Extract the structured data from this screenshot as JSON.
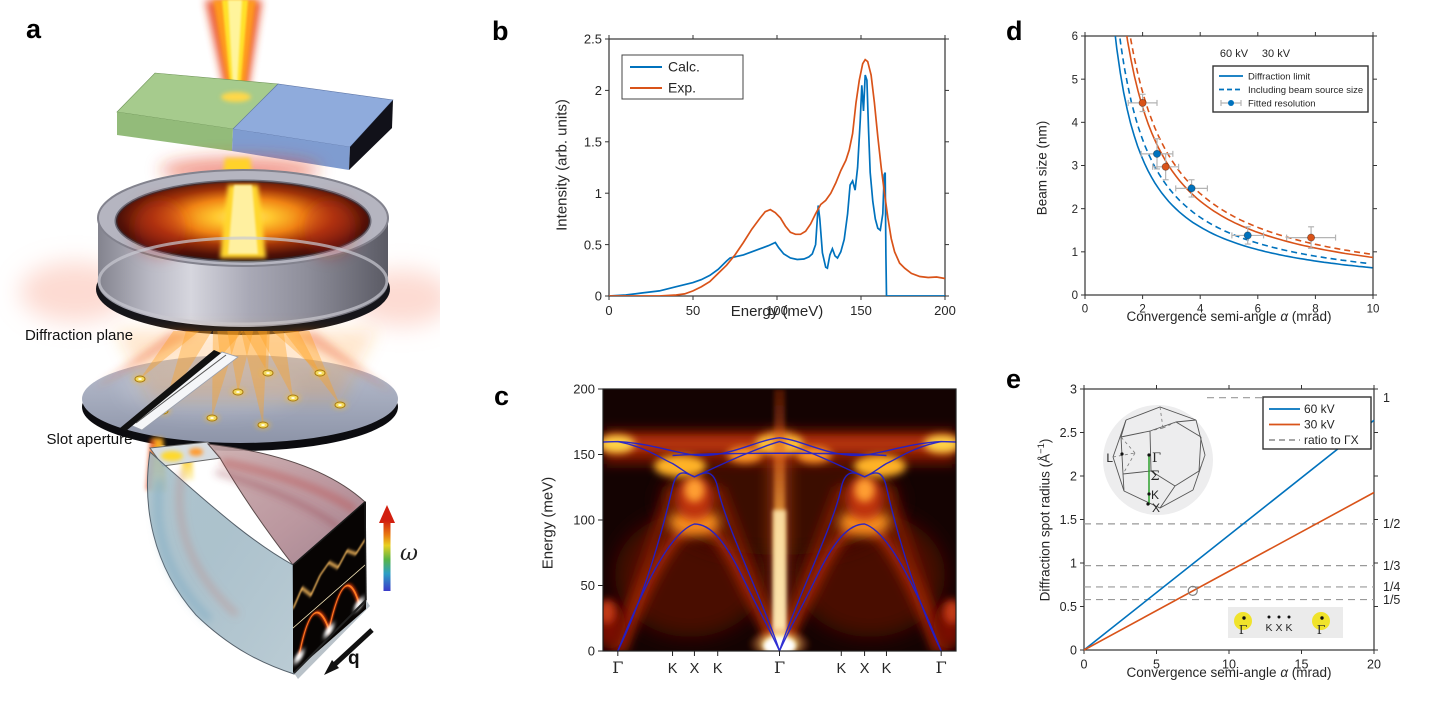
{
  "figure": {
    "background": "#ffffff",
    "panel_labels": {
      "a": "a",
      "b": "b",
      "c": "c",
      "d": "d",
      "e": "e"
    }
  },
  "panel_a": {
    "labels": {
      "diffraction_plane": "Diffraction plane",
      "slot_aperture": "Slot aperture",
      "omega": "ω",
      "q": "q"
    },
    "colors": {
      "sample_green": "#a6cb8d",
      "sample_blue": "#8fabdc",
      "beam_core": "#ffe12a",
      "beam_edge": "#e8431f",
      "lens_gray": "#a9a9b3",
      "disk_gray": "#a7aec2",
      "spot_yellow": "#f3d95c",
      "heatmap_black": "#070403"
    }
  },
  "chart_data": [
    {
      "id": "b",
      "type": "line",
      "xlabel": "Energy (meV)",
      "ylabel": "Intensity (arb. units)",
      "xlim": [
        0,
        200
      ],
      "ylim": [
        0,
        2.5
      ],
      "xticks": [
        0,
        50,
        100,
        150,
        200
      ],
      "xtick_labels": [
        "0",
        "50",
        "100",
        "150",
        "200"
      ],
      "yticks": [
        0,
        0.5,
        1,
        1.5,
        2,
        2.5
      ],
      "ytick_labels": [
        "0",
        "0.5",
        "1",
        "1.5",
        "2",
        "2.5"
      ],
      "legend": [
        "Calc.",
        "Exp."
      ],
      "legend_position": "top-left",
      "series": [
        {
          "name": "Calc.",
          "color": "#0072BD",
          "x": [
            0,
            10,
            20,
            30,
            40,
            50,
            55,
            60,
            65,
            70,
            72,
            76,
            80,
            85,
            90,
            95,
            99,
            101,
            104,
            108,
            112,
            116,
            119,
            121,
            123,
            124.5,
            125.5,
            127,
            129,
            130,
            131.5,
            133,
            134.5,
            136,
            138,
            140,
            142,
            143.5,
            145,
            146.5,
            148,
            149.5,
            150.5,
            151.5,
            152.5,
            153.5,
            154.5,
            155.5,
            157,
            158.5,
            160,
            161.5,
            163,
            163.8,
            164.4,
            164.8,
            165.2,
            170,
            200
          ],
          "y": [
            0,
            0.01,
            0.03,
            0.05,
            0.09,
            0.13,
            0.16,
            0.2,
            0.26,
            0.34,
            0.37,
            0.385,
            0.4,
            0.43,
            0.46,
            0.49,
            0.52,
            0.47,
            0.41,
            0.37,
            0.355,
            0.36,
            0.38,
            0.41,
            0.5,
            0.88,
            0.75,
            0.42,
            0.28,
            0.27,
            0.4,
            0.46,
            0.39,
            0.37,
            0.43,
            0.55,
            0.8,
            1.08,
            1.12,
            1.03,
            1.25,
            1.7,
            2.05,
            1.8,
            2.15,
            2.1,
            1.6,
            1.2,
            0.92,
            0.75,
            0.66,
            0.64,
            0.8,
            1.18,
            1.2,
            0.4,
            0,
            0,
            0
          ]
        },
        {
          "name": "Exp.",
          "color": "#D95319",
          "x": [
            0,
            30,
            40,
            45,
            50,
            55,
            60,
            65,
            70,
            75,
            80,
            85,
            90,
            93,
            96,
            99,
            102,
            105,
            108,
            111,
            114,
            117,
            120,
            123,
            126,
            129,
            132,
            135,
            138,
            141,
            143,
            145,
            147,
            149,
            151,
            152.5,
            154,
            156,
            158,
            160,
            162,
            164,
            166,
            168,
            170,
            173,
            176,
            180,
            185,
            190,
            195,
            200
          ],
          "y": [
            0,
            0,
            0.01,
            0.02,
            0.05,
            0.09,
            0.14,
            0.22,
            0.3,
            0.4,
            0.52,
            0.65,
            0.76,
            0.82,
            0.84,
            0.81,
            0.76,
            0.68,
            0.62,
            0.6,
            0.6,
            0.63,
            0.7,
            0.8,
            0.89,
            0.93,
            1.0,
            1.1,
            1.22,
            1.32,
            1.42,
            1.58,
            1.88,
            2.1,
            2.26,
            2.3,
            2.28,
            2.15,
            1.88,
            1.55,
            1.25,
            1.0,
            0.76,
            0.56,
            0.43,
            0.32,
            0.27,
            0.22,
            0.19,
            0.18,
            0.185,
            0.17
          ]
        }
      ]
    },
    {
      "id": "c",
      "type": "heatmap",
      "ylabel": "Energy (meV)",
      "ylim": [
        0,
        200
      ],
      "yticks": [
        0,
        50,
        100,
        150,
        200
      ],
      "ytick_labels": [
        "0",
        "50",
        "100",
        "150",
        "200"
      ],
      "xticklabels": [
        "Γ",
        "K",
        "X",
        "K",
        "Γ",
        "K",
        "X",
        "K",
        "Γ"
      ],
      "xtick_positions": [
        0.042,
        0.197,
        0.259,
        0.325,
        0.5,
        0.675,
        0.741,
        0.803,
        0.958
      ],
      "overlay_color": "#1f1fd0",
      "description": "Momentum-resolved vibrational spectrum along Γ-K-X-K-Γ-K-X-K-Γ with calculated phonon dispersion (blue curves): acoustic arches up to ~97 meV peaking at X, branch crossings ~125 meV at K, optical band 133-163 meV, intense elastic streak at central Γ, bright optical band near 160 meV"
    },
    {
      "id": "d",
      "type": "line",
      "xlabel": "Convergence semi-angle α (mrad)",
      "xlabel_parts": [
        "Convergence semi-angle ",
        "α",
        " (mrad)"
      ],
      "ylabel": "Beam size (nm)",
      "xlim": [
        0,
        10
      ],
      "ylim": [
        0,
        6
      ],
      "xticks": [
        0,
        2,
        4,
        6,
        8,
        10
      ],
      "xtick_labels": [
        "0",
        "2",
        "4",
        "6",
        "8",
        "10"
      ],
      "yticks": [
        0,
        1,
        2,
        3,
        4,
        5,
        6
      ],
      "ytick_labels": [
        "0",
        "1",
        "2",
        "3",
        "4",
        "5",
        "6"
      ],
      "voltage_labels": [
        {
          "text": "60 kV",
          "color": "#0072BD"
        },
        {
          "text": "30 kV",
          "color": "#D95319"
        }
      ],
      "legend": [
        "Diffraction limit",
        "Including beam source size",
        "Fitted resolution"
      ],
      "curves": [
        {
          "name": "60 kV diffraction limit",
          "style": "solid",
          "color": "#0072BD",
          "coefficient": 6.3
        },
        {
          "name": "60 kV including beam source size",
          "style": "dashed",
          "color": "#0072BD",
          "coefficient": 7.2
        },
        {
          "name": "30 kV diffraction limit",
          "style": "solid",
          "color": "#D95319",
          "coefficient": 8.7
        },
        {
          "name": "30 kV including beam source size",
          "style": "dashed",
          "color": "#D95319",
          "coefficient": 9.4
        }
      ],
      "points": [
        {
          "x": 2.0,
          "y": 4.45,
          "xerr": 0.5,
          "yerr": 0.2,
          "color": "#D95319"
        },
        {
          "x": 2.5,
          "y": 3.27,
          "xerr": 0.55,
          "yerr": 0.35,
          "color": "#0072BD"
        },
        {
          "x": 2.8,
          "y": 2.97,
          "xerr": 0.45,
          "yerr": 0.3,
          "color": "#D95319"
        },
        {
          "x": 3.7,
          "y": 2.47,
          "xerr": 0.55,
          "yerr": 0.2,
          "color": "#0072BD"
        },
        {
          "x": 5.65,
          "y": 1.38,
          "xerr": 0.55,
          "yerr": 0.2,
          "color": "#0072BD"
        },
        {
          "x": 7.85,
          "y": 1.33,
          "xerr": 0.85,
          "yerr": 0.25,
          "color": "#D95319"
        }
      ]
    },
    {
      "id": "e",
      "type": "line",
      "xlabel": "Convergence semi-angle α (mrad)",
      "xlabel_parts": [
        "Convergence semi-angle ",
        "α",
        " (mrad)"
      ],
      "ylabel": "Diffraction spot radius (Å−1)",
      "ylabel_parts": [
        "Diffraction spot radius (Å",
        "−1",
        ")"
      ],
      "xlim": [
        0,
        20
      ],
      "ylim": [
        0,
        3
      ],
      "xticks": [
        0,
        5,
        10,
        15,
        20
      ],
      "xtick_labels": [
        "0",
        "5",
        "10",
        "15",
        "20"
      ],
      "yticks": [
        0,
        0.5,
        1,
        1.5,
        2,
        2.5,
        3
      ],
      "ytick_labels": [
        "0",
        "0.5",
        "1",
        "1.5",
        "2",
        "2.5",
        "3"
      ],
      "legend": [
        "60 kV",
        "30 kV",
        "ratio to ΓX"
      ],
      "lines": [
        {
          "name": "60 kV",
          "color": "#0072BD",
          "slope": 0.132
        },
        {
          "name": "30 kV",
          "color": "#D95319",
          "slope": 0.0905
        }
      ],
      "ratio_lines": [
        {
          "label": "1",
          "y": 2.9
        },
        {
          "label": "1/2",
          "y": 1.45
        },
        {
          "label": "1/3",
          "y": 0.97
        },
        {
          "label": "1/4",
          "y": 0.725
        },
        {
          "label": "1/5",
          "y": 0.58
        }
      ],
      "marker": {
        "x": 7.5,
        "y": 0.68
      },
      "inset_bz_labels": [
        "L",
        "Γ",
        "Σ",
        "K",
        "X"
      ],
      "inset_bottom_labels": [
        "Γ",
        "K",
        "X",
        "K",
        "Γ"
      ]
    }
  ]
}
